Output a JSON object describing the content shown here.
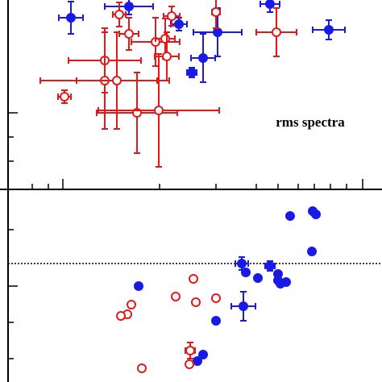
{
  "chart_data": [
    {
      "type": "scatter",
      "annotation": "rms spectra",
      "xlim": [
        0,
        474
      ],
      "ylim": [
        0,
        235
      ],
      "series": [
        {
          "color": "#1a1ae6",
          "marker": "filled",
          "x": [
            88,
            160,
            222,
            270,
            408,
            252,
            238,
            335
          ],
          "y": [
            213,
            227,
            205,
            195,
            198,
            163,
            145,
            230
          ],
          "xerr": [
            15,
            30,
            10,
            30,
            20,
            15,
            6,
            12
          ],
          "yerr": [
            20,
            10,
            8,
            30,
            12,
            30,
            6,
            10
          ]
        },
        {
          "color": "#e01a1a",
          "marker": "open",
          "x": [
            148,
            160,
            193,
            205,
            207,
            130,
            130,
            145,
            170,
            197,
            80,
            343,
            268,
            213
          ],
          "y": [
            217,
            193,
            183,
            187,
            165,
            160,
            135,
            135,
            95,
            98,
            115,
            195,
            220,
            215
          ],
          "xerr": [
            8,
            12,
            30,
            12,
            15,
            45,
            80,
            50,
            50,
            75,
            8,
            25,
            5,
            10
          ],
          "yerr": [
            15,
            20,
            30,
            25,
            30,
            40,
            60,
            60,
            50,
            70,
            8,
            30,
            20,
            12
          ]
        }
      ]
    },
    {
      "type": "scatter",
      "xlim": [
        0,
        474
      ],
      "ylim": [
        0,
        238
      ],
      "hline": 147,
      "series": [
        {
          "color": "#1a1ae6",
          "marker": "filled",
          "x": [
            360,
            388,
            392,
            387,
            300,
            335,
            345,
            320,
            305,
            345,
            355,
            348,
            172,
            302,
            268,
            252,
            245
          ],
          "y": [
            206,
            212,
            208,
            162,
            147,
            144,
            134,
            129,
            136,
            126,
            124,
            122,
            119,
            94,
            76,
            34,
            26
          ],
          "xerr": [
            3,
            3,
            3,
            3,
            8,
            6,
            3,
            3,
            3,
            3,
            3,
            3,
            3,
            15,
            3,
            3,
            3
          ],
          "yerr": [
            3,
            3,
            3,
            3,
            8,
            6,
            3,
            3,
            3,
            3,
            3,
            3,
            3,
            18,
            3,
            3,
            3
          ]
        },
        {
          "color": "#e01a1a",
          "marker": "open",
          "x": [
            218,
            240,
            243,
            268,
            163,
            158,
            150,
            236,
            235,
            176
          ],
          "y": [
            106,
            128,
            99,
            104,
            96,
            84,
            82,
            39,
            22,
            17
          ],
          "xerr": [
            0,
            0,
            0,
            0,
            0,
            0,
            0,
            6,
            0,
            0
          ],
          "yerr": [
            0,
            0,
            0,
            0,
            0,
            0,
            0,
            10,
            0,
            0
          ]
        }
      ]
    }
  ]
}
